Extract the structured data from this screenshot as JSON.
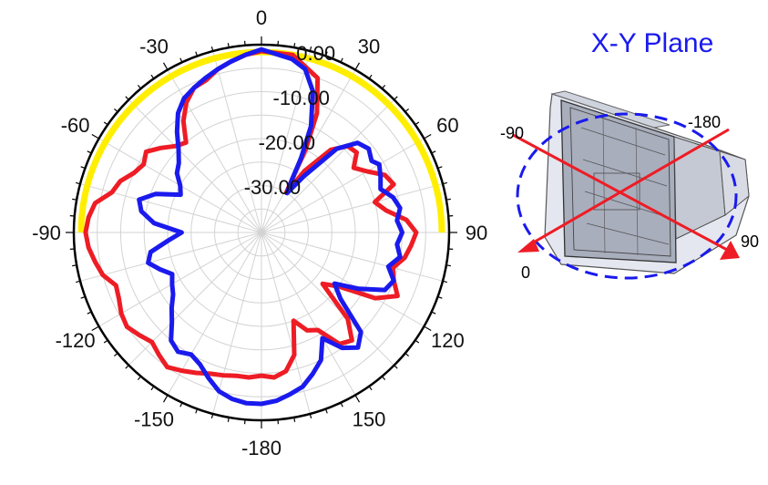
{
  "chart_data": {
    "type": "polar",
    "title": "X-Y Plane",
    "angle_labels": [
      "0",
      "30",
      "60",
      "90",
      "120",
      "150",
      "-180",
      "-150",
      "-120",
      "-90",
      "-60",
      "-30"
    ],
    "angle_label_values": [
      0,
      30,
      60,
      90,
      120,
      150,
      180,
      210,
      240,
      270,
      300,
      330
    ],
    "radial_labels": [
      "0.00",
      "-10.00",
      "-20.00",
      "-30.00"
    ],
    "radial_label_values": [
      0,
      -10,
      -20,
      -30
    ],
    "rlim": [
      -40,
      0
    ],
    "grid": true,
    "highlight_arc": {
      "from_deg": -90,
      "to_deg": 90,
      "color": "#ffee00"
    },
    "series": [
      {
        "color": "#ee1c25",
        "values": [
          [
            0,
            -1.4
          ],
          [
            10,
            -1.6
          ],
          [
            20,
            -5
          ],
          [
            25,
            -12
          ],
          [
            28,
            -20
          ],
          [
            30,
            -27
          ],
          [
            32,
            -30
          ],
          [
            35,
            -24
          ],
          [
            40,
            -17
          ],
          [
            45,
            -14
          ],
          [
            50,
            -13.5
          ],
          [
            55,
            -16
          ],
          [
            60,
            -14
          ],
          [
            65,
            -11
          ],
          [
            70,
            -10
          ],
          [
            75,
            -15
          ],
          [
            80,
            -13
          ],
          [
            85,
            -9
          ],
          [
            90,
            -7
          ],
          [
            95,
            -8
          ],
          [
            100,
            -9
          ],
          [
            105,
            -11
          ],
          [
            110,
            -10
          ],
          [
            115,
            -8
          ],
          [
            120,
            -12
          ],
          [
            125,
            -20
          ],
          [
            130,
            -23
          ],
          [
            135,
            -14
          ],
          [
            140,
            -10
          ],
          [
            145,
            -11
          ],
          [
            150,
            -16
          ],
          [
            155,
            -17
          ],
          [
            160,
            -20
          ],
          [
            165,
            -13
          ],
          [
            170,
            -10
          ],
          [
            175,
            -9
          ],
          [
            180,
            -9.5
          ],
          [
            185,
            -9
          ],
          [
            190,
            -9
          ],
          [
            195,
            -8.5
          ],
          [
            200,
            -8
          ],
          [
            205,
            -7
          ],
          [
            210,
            -6
          ],
          [
            215,
            -5
          ],
          [
            220,
            -6
          ],
          [
            225,
            -7
          ],
          [
            230,
            -6
          ],
          [
            235,
            -5
          ],
          [
            240,
            -5.5
          ],
          [
            245,
            -6.5
          ],
          [
            250,
            -7
          ],
          [
            255,
            -5
          ],
          [
            260,
            -4
          ],
          [
            265,
            -3
          ],
          [
            270,
            -2.5
          ],
          [
            275,
            -3
          ],
          [
            280,
            -4
          ],
          [
            285,
            -7
          ],
          [
            290,
            -8
          ],
          [
            295,
            -10
          ],
          [
            300,
            -11
          ],
          [
            305,
            -10
          ],
          [
            310,
            -12
          ],
          [
            315,
            -14
          ],
          [
            320,
            -15
          ],
          [
            325,
            -11
          ],
          [
            330,
            -8
          ],
          [
            335,
            -6
          ],
          [
            340,
            -5.5
          ],
          [
            345,
            -4
          ],
          [
            350,
            -3
          ],
          [
            355,
            -2
          ],
          [
            360,
            -1.4
          ]
        ]
      },
      {
        "color": "#1a1aee",
        "values": [
          [
            0,
            -1.0
          ],
          [
            10,
            -2.5
          ],
          [
            15,
            -4
          ],
          [
            20,
            -8
          ],
          [
            25,
            -15
          ],
          [
            28,
            -22
          ],
          [
            30,
            -27
          ],
          [
            33,
            -30
          ],
          [
            37,
            -25
          ],
          [
            42,
            -16
          ],
          [
            47,
            -12
          ],
          [
            52,
            -11
          ],
          [
            57,
            -12
          ],
          [
            60,
            -11
          ],
          [
            65,
            -12
          ],
          [
            70,
            -13
          ],
          [
            75,
            -11
          ],
          [
            80,
            -10
          ],
          [
            85,
            -11
          ],
          [
            90,
            -10
          ],
          [
            95,
            -11
          ],
          [
            100,
            -10
          ],
          [
            105,
            -12
          ],
          [
            110,
            -10
          ],
          [
            115,
            -11
          ],
          [
            120,
            -16
          ],
          [
            125,
            -21
          ],
          [
            130,
            -18
          ],
          [
            135,
            -10
          ],
          [
            140,
            -8
          ],
          [
            145,
            -10
          ],
          [
            150,
            -14
          ],
          [
            155,
            -10
          ],
          [
            160,
            -8
          ],
          [
            165,
            -6
          ],
          [
            170,
            -5
          ],
          [
            175,
            -4
          ],
          [
            180,
            -3.5
          ],
          [
            185,
            -3.5
          ],
          [
            190,
            -4
          ],
          [
            195,
            -5
          ],
          [
            200,
            -7
          ],
          [
            205,
            -9
          ],
          [
            210,
            -10
          ],
          [
            215,
            -9
          ],
          [
            220,
            -10
          ],
          [
            225,
            -13
          ],
          [
            230,
            -15
          ],
          [
            235,
            -17
          ],
          [
            240,
            -18
          ],
          [
            245,
            -19
          ],
          [
            250,
            -17
          ],
          [
            255,
            -15
          ],
          [
            260,
            -16
          ],
          [
            265,
            -20
          ],
          [
            270,
            -23
          ],
          [
            275,
            -17
          ],
          [
            280,
            -14
          ],
          [
            285,
            -13
          ],
          [
            290,
            -16
          ],
          [
            295,
            -21
          ],
          [
            300,
            -20
          ],
          [
            305,
            -18
          ],
          [
            310,
            -17
          ],
          [
            315,
            -15
          ],
          [
            320,
            -12
          ],
          [
            325,
            -9
          ],
          [
            330,
            -7
          ],
          [
            335,
            -6
          ],
          [
            340,
            -5
          ],
          [
            345,
            -4
          ],
          [
            350,
            -3
          ],
          [
            355,
            -2
          ],
          [
            360,
            -1.0
          ]
        ]
      }
    ]
  },
  "inset": {
    "title": "X-Y Plane",
    "title_color": "#1a1aee",
    "axis_labels": {
      "minus90": "-90",
      "minus180": "-180",
      "zero": "0",
      "ninety": "90"
    },
    "axis_color": "#ee1c25",
    "ellipse_color": "#1a1aee",
    "object_icon": "device-housing-icon"
  }
}
